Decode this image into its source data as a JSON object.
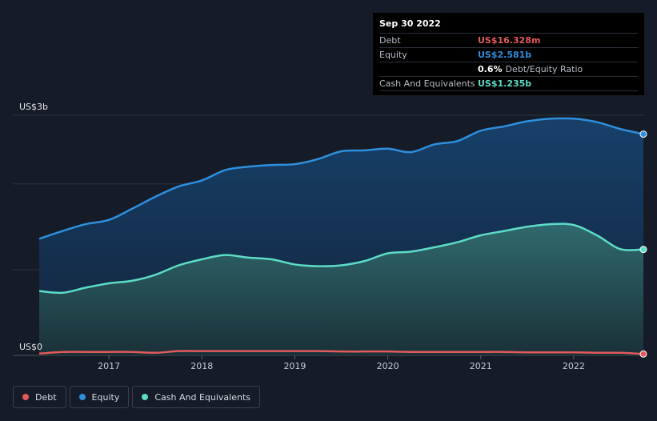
{
  "tooltip": {
    "date": "Sep 30 2022",
    "rows": [
      {
        "label": "Debt",
        "value": "US$16.328m",
        "color": "#e25a5a"
      },
      {
        "label": "Equity",
        "value": "US$2.581b",
        "color": "#2e8fde"
      }
    ],
    "ratio_value": "0.6%",
    "ratio_label": "Debt/Equity Ratio",
    "cash_label": "Cash And Equivalents",
    "cash_value": "US$1.235b",
    "cash_color": "#5cdcc7"
  },
  "legend": [
    {
      "label": "Debt",
      "color": "#e25a5a"
    },
    {
      "label": "Equity",
      "color": "#2e8fde"
    },
    {
      "label": "Cash And Equivalents",
      "color": "#5cdcc7"
    }
  ],
  "chart_data": {
    "type": "area",
    "ylim": [
      0,
      2.8
    ],
    "y_tick_labels": [
      {
        "value": 2.8,
        "label": "US$3b"
      },
      {
        "value": 0,
        "label": "US$0"
      }
    ],
    "x_ticks": [
      2017,
      2018,
      2019,
      2020,
      2021,
      2022
    ],
    "xlim": [
      2016.1,
      2022.75
    ],
    "grid": true,
    "series": [
      {
        "name": "Equity",
        "color": "#2e8fde",
        "x": [
          2016.25,
          2016.5,
          2016.75,
          2017.0,
          2017.25,
          2017.5,
          2017.75,
          2018.0,
          2018.25,
          2018.5,
          2018.75,
          2019.0,
          2019.25,
          2019.5,
          2019.75,
          2020.0,
          2020.25,
          2020.5,
          2020.75,
          2021.0,
          2021.25,
          2021.5,
          2021.75,
          2022.0,
          2022.25,
          2022.5,
          2022.75
        ],
        "y": [
          1.36,
          1.45,
          1.53,
          1.58,
          1.71,
          1.85,
          1.97,
          2.04,
          2.16,
          2.2,
          2.22,
          2.23,
          2.29,
          2.38,
          2.39,
          2.41,
          2.37,
          2.46,
          2.5,
          2.62,
          2.67,
          2.73,
          2.76,
          2.76,
          2.72,
          2.64,
          2.58
        ]
      },
      {
        "name": "Cash And Equivalents",
        "color": "#5cdcc7",
        "x": [
          2016.25,
          2016.5,
          2016.75,
          2017.0,
          2017.25,
          2017.5,
          2017.75,
          2018.0,
          2018.25,
          2018.5,
          2018.75,
          2019.0,
          2019.25,
          2019.5,
          2019.75,
          2020.0,
          2020.25,
          2020.5,
          2020.75,
          2021.0,
          2021.25,
          2021.5,
          2021.75,
          2022.0,
          2022.25,
          2022.5,
          2022.75
        ],
        "y": [
          0.75,
          0.73,
          0.79,
          0.84,
          0.87,
          0.94,
          1.05,
          1.12,
          1.17,
          1.14,
          1.12,
          1.06,
          1.04,
          1.05,
          1.1,
          1.19,
          1.21,
          1.26,
          1.32,
          1.4,
          1.45,
          1.5,
          1.53,
          1.52,
          1.4,
          1.24,
          1.235
        ]
      },
      {
        "name": "Debt",
        "color": "#e25a5a",
        "x": [
          2016.25,
          2016.5,
          2016.75,
          2017.0,
          2017.25,
          2017.5,
          2017.75,
          2018.0,
          2018.25,
          2018.5,
          2018.75,
          2019.0,
          2019.25,
          2019.5,
          2019.75,
          2020.0,
          2020.25,
          2020.5,
          2020.75,
          2021.0,
          2021.25,
          2021.5,
          2021.75,
          2022.0,
          2022.25,
          2022.5,
          2022.75
        ],
        "y": [
          0.02,
          0.04,
          0.04,
          0.04,
          0.04,
          0.03,
          0.05,
          0.05,
          0.05,
          0.05,
          0.05,
          0.05,
          0.05,
          0.045,
          0.045,
          0.045,
          0.04,
          0.04,
          0.04,
          0.04,
          0.04,
          0.035,
          0.035,
          0.035,
          0.03,
          0.03,
          0.016
        ]
      }
    ]
  }
}
